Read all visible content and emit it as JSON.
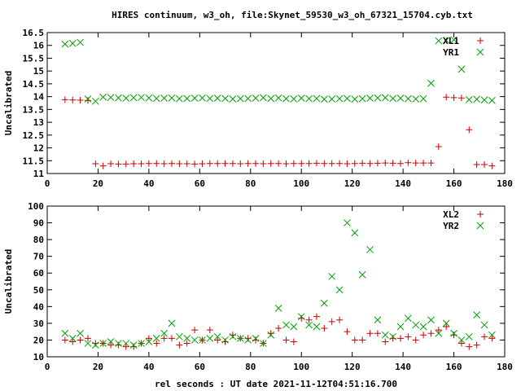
{
  "chart_data": [
    {
      "type": "scatter",
      "title": "HIRES continuum, w3_oh, file:Skynet_59530_w3_oh_67321_15704.cyb.txt",
      "xlabel": "",
      "ylabel": "Uncalibrated",
      "xlim": [
        0,
        180
      ],
      "ylim": [
        11,
        16.5
      ],
      "xticks": [
        0,
        20,
        40,
        60,
        80,
        100,
        120,
        140,
        160,
        180
      ],
      "yticks": [
        11,
        11.5,
        12,
        12.5,
        13,
        13.5,
        14,
        14.5,
        15,
        15.5,
        16,
        16.5
      ],
      "legend_position": "top-right",
      "series": [
        {
          "name": "XL1",
          "marker": "plus",
          "color": "#cc0000",
          "x": [
            7,
            10,
            13,
            16,
            19,
            22,
            25,
            28,
            31,
            34,
            37,
            40,
            43,
            46,
            49,
            52,
            55,
            58,
            61,
            64,
            67,
            70,
            73,
            76,
            79,
            82,
            85,
            88,
            91,
            94,
            97,
            100,
            103,
            106,
            109,
            112,
            115,
            118,
            121,
            124,
            127,
            130,
            133,
            136,
            139,
            142,
            145,
            148,
            151,
            154,
            157,
            160,
            163,
            166,
            169,
            172,
            175
          ],
          "y": [
            13.88,
            13.87,
            13.86,
            13.85,
            11.38,
            11.3,
            11.38,
            11.37,
            11.37,
            11.38,
            11.38,
            11.39,
            11.39,
            11.38,
            11.39,
            11.38,
            11.38,
            11.37,
            11.38,
            11.39,
            11.39,
            11.39,
            11.39,
            11.38,
            11.39,
            11.39,
            11.38,
            11.39,
            11.39,
            11.38,
            11.39,
            11.39,
            11.39,
            11.4,
            11.39,
            11.39,
            11.39,
            11.38,
            11.39,
            11.4,
            11.39,
            11.4,
            11.41,
            11.4,
            11.39,
            11.42,
            11.41,
            11.41,
            11.41,
            12.05,
            13.98,
            13.96,
            13.95,
            12.71,
            11.35,
            11.35,
            11.3
          ]
        },
        {
          "name": "YR1",
          "marker": "cross",
          "color": "#00a000",
          "x": [
            7,
            10,
            13,
            16,
            19,
            22,
            25,
            28,
            31,
            34,
            37,
            40,
            43,
            46,
            49,
            52,
            55,
            58,
            61,
            64,
            67,
            70,
            73,
            76,
            79,
            82,
            85,
            88,
            91,
            94,
            97,
            100,
            103,
            106,
            109,
            112,
            115,
            118,
            121,
            124,
            127,
            130,
            133,
            136,
            139,
            142,
            145,
            148,
            151,
            154,
            157,
            160,
            163,
            166,
            169,
            172,
            175
          ],
          "y": [
            16.05,
            16.08,
            16.12,
            13.91,
            13.82,
            13.98,
            13.97,
            13.95,
            13.94,
            13.96,
            13.97,
            13.95,
            13.93,
            13.94,
            13.95,
            13.92,
            13.93,
            13.94,
            13.95,
            13.93,
            13.94,
            13.93,
            13.91,
            13.92,
            13.93,
            13.94,
            13.96,
            13.93,
            13.95,
            13.92,
            13.91,
            13.94,
            13.92,
            13.93,
            13.9,
            13.91,
            13.92,
            13.93,
            13.9,
            13.92,
            13.94,
            13.95,
            13.96,
            13.93,
            13.94,
            13.92,
            13.91,
            13.92,
            14.52,
            16.18,
            16.2,
            16.22,
            15.07,
            13.88,
            13.9,
            13.87,
            13.85
          ]
        }
      ],
      "legend": {
        "entries": [
          {
            "label": "XL1",
            "color": "#cc0000"
          },
          {
            "label": "YR1",
            "color": "#00a000"
          }
        ]
      }
    },
    {
      "type": "scatter",
      "title": "",
      "xlabel": "rel seconds : UT date 2021-11-12T04:51:16.700",
      "ylabel": "Uncalibrated",
      "xlim": [
        0,
        180
      ],
      "ylim": [
        10,
        100
      ],
      "xticks": [
        0,
        20,
        40,
        60,
        80,
        100,
        120,
        140,
        160,
        180
      ],
      "yticks": [
        10,
        20,
        30,
        40,
        50,
        60,
        70,
        80,
        90,
        100
      ],
      "legend_position": "top-right",
      "series": [
        {
          "name": "XL2",
          "marker": "plus",
          "color": "#cc0000",
          "x": [
            7,
            10,
            13,
            16,
            19,
            22,
            25,
            28,
            31,
            34,
            37,
            40,
            43,
            46,
            49,
            52,
            55,
            58,
            61,
            64,
            67,
            70,
            73,
            76,
            79,
            82,
            85,
            88,
            91,
            94,
            97,
            100,
            103,
            106,
            109,
            112,
            115,
            118,
            121,
            124,
            127,
            130,
            133,
            136,
            139,
            142,
            145,
            148,
            151,
            154,
            157,
            160,
            163,
            166,
            169,
            172,
            175
          ],
          "y": [
            20,
            19,
            20,
            21,
            18,
            18,
            17,
            17,
            16,
            16,
            18,
            21,
            18,
            21,
            21,
            17,
            18,
            26,
            20,
            26,
            20,
            19,
            23,
            21,
            21,
            20,
            18,
            24,
            27,
            20,
            19,
            33,
            32,
            34,
            27,
            31,
            32,
            25,
            20,
            20,
            24,
            24,
            19,
            21,
            21,
            22,
            20,
            23,
            24,
            26,
            28,
            23,
            18,
            16,
            17,
            22,
            21
          ]
        },
        {
          "name": "YR2",
          "marker": "cross",
          "color": "#00a000",
          "x": [
            7,
            10,
            13,
            16,
            19,
            22,
            25,
            28,
            31,
            34,
            37,
            40,
            43,
            46,
            49,
            52,
            55,
            58,
            61,
            64,
            67,
            70,
            73,
            76,
            79,
            82,
            85,
            88,
            91,
            94,
            97,
            100,
            103,
            106,
            109,
            112,
            115,
            118,
            121,
            124,
            127,
            130,
            133,
            136,
            139,
            142,
            145,
            148,
            151,
            154,
            157,
            160,
            163,
            166,
            169,
            172,
            175
          ],
          "y": [
            24,
            21,
            24,
            18,
            17,
            18,
            19,
            18,
            18,
            17,
            18,
            19,
            21,
            24,
            30,
            22,
            21,
            20,
            20,
            21,
            22,
            20,
            22,
            21,
            20,
            21,
            18,
            23,
            39,
            29,
            28,
            34,
            29,
            28,
            42,
            58,
            50,
            90,
            84,
            59,
            74,
            32,
            23,
            22,
            28,
            33,
            29,
            28,
            32,
            24,
            30,
            24,
            20,
            22,
            35,
            29,
            23
          ]
        }
      ],
      "legend": {
        "entries": [
          {
            "label": "XL2",
            "color": "#cc0000"
          },
          {
            "label": "YR2",
            "color": "#00a000"
          }
        ]
      }
    }
  ]
}
